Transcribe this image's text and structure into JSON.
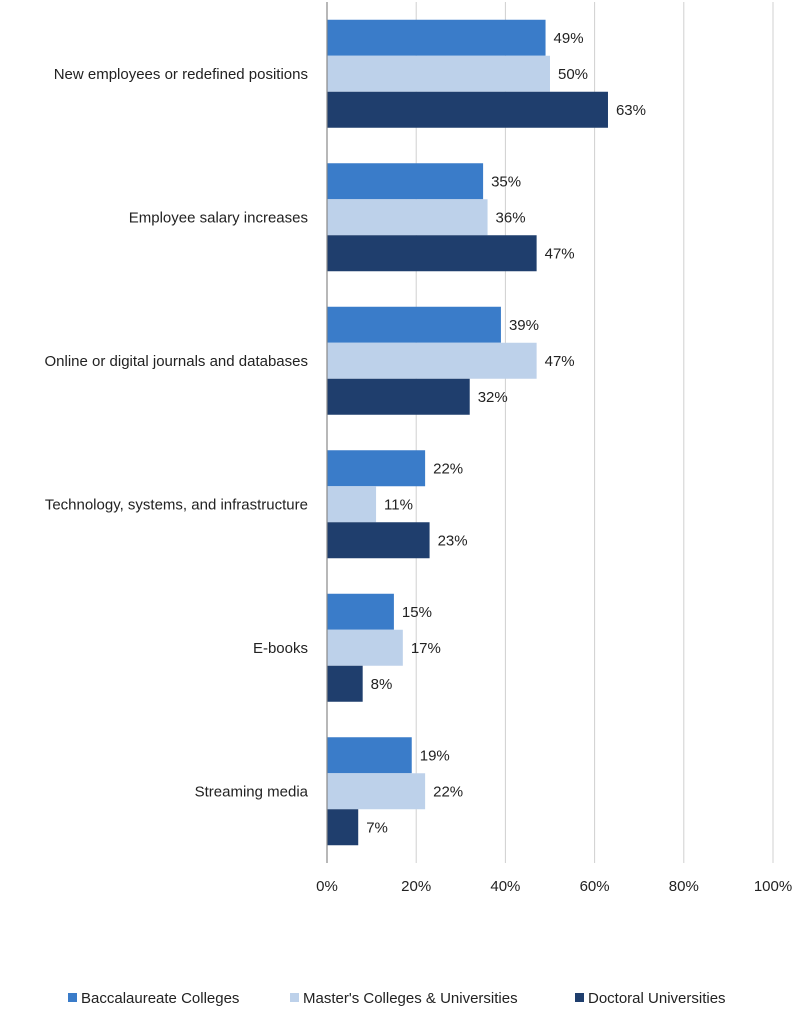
{
  "chart_data": {
    "type": "bar",
    "orientation": "horizontal",
    "title": "",
    "xlabel": "",
    "ylabel": "",
    "categories": [
      "New employees or redefined positions",
      "Employee salary increases",
      "Online or digital journals and databases",
      "Technology, systems, and infrastructure",
      "E-books",
      "Streaming media"
    ],
    "series": [
      {
        "name": "Baccalaureate Colleges",
        "color": "#3a7cc9",
        "values": [
          49,
          35,
          39,
          22,
          15,
          19
        ]
      },
      {
        "name": "Master's Colleges & Universities",
        "color": "#bdd1ea",
        "values": [
          50,
          36,
          47,
          11,
          17,
          22
        ]
      },
      {
        "name": "Doctoral Universities",
        "color": "#1f3e6d",
        "values": [
          63,
          47,
          32,
          23,
          8,
          7
        ]
      }
    ],
    "xlim": [
      0,
      100
    ],
    "xticks": [
      "0%",
      "20%",
      "40%",
      "60%",
      "80%",
      "100%"
    ],
    "value_format": "percent",
    "grid": "vertical",
    "legend_position": "bottom"
  }
}
